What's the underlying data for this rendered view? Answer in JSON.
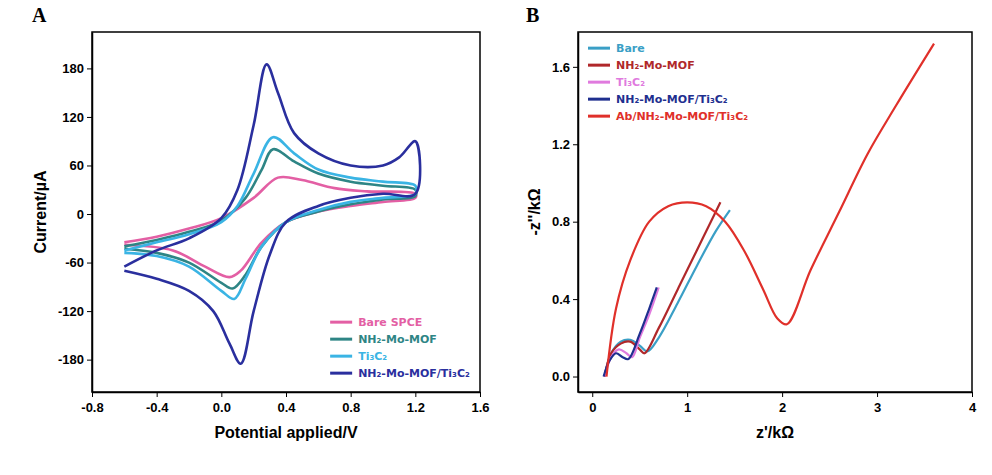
{
  "chart_data": [
    {
      "type": "line",
      "panel": "A",
      "x_label": "Potential applied/V",
      "y_label": "Current/µA",
      "xlim": [
        -0.8,
        1.6
      ],
      "xticks": [
        -0.8,
        -0.4,
        {
          "value": 0,
          "label": "0.0"
        },
        0.4,
        0.8,
        1.2,
        1.6
      ],
      "ylim": [
        -220,
        225
      ],
      "yticks": [
        -180,
        -120,
        -60,
        0,
        60,
        120,
        180
      ],
      "legend": "bottom-right",
      "series": [
        {
          "name": "Bare SPCE",
          "color": "#e35fa4",
          "x": [
            -0.6,
            -0.4,
            -0.2,
            0,
            0.2,
            0.35,
            0.5,
            0.7,
            0.9,
            1.2,
            1.2,
            1.0,
            0.8,
            0.6,
            0.4,
            0.25,
            0.12,
            0.05,
            -0.1,
            -0.3,
            -0.6
          ],
          "values": [
            -35,
            -28,
            -18,
            -5,
            20,
            45,
            42,
            32,
            28,
            25,
            20,
            15,
            10,
            3,
            -10,
            -35,
            -70,
            -78,
            -65,
            -45,
            -38
          ]
        },
        {
          "name": "NH₂-Mo-MOF",
          "color": "#2e8585",
          "x": [
            -0.6,
            -0.4,
            -0.2,
            0,
            0.15,
            0.25,
            0.32,
            0.45,
            0.6,
            0.8,
            1.0,
            1.2,
            1.2,
            1.0,
            0.8,
            0.6,
            0.4,
            0.25,
            0.15,
            0.07,
            0,
            -0.2,
            -0.4,
            -0.6
          ],
          "values": [
            -40,
            -32,
            -22,
            -8,
            20,
            55,
            80,
            65,
            50,
            40,
            35,
            30,
            22,
            18,
            12,
            3,
            -10,
            -40,
            -75,
            -92,
            -85,
            -60,
            -48,
            -43
          ]
        },
        {
          "name": "Ti₃C₂",
          "color": "#3ab4e4",
          "x": [
            -0.6,
            -0.4,
            -0.2,
            0,
            0.1,
            0.2,
            0.32,
            0.45,
            0.6,
            0.8,
            1.0,
            1.2,
            1.2,
            1.0,
            0.8,
            0.6,
            0.4,
            0.25,
            0.15,
            0.08,
            0,
            -0.2,
            -0.4,
            -0.6
          ],
          "values": [
            -45,
            -35,
            -25,
            -10,
            10,
            50,
            95,
            75,
            55,
            45,
            40,
            35,
            25,
            20,
            15,
            5,
            -10,
            -40,
            -80,
            -105,
            -95,
            -65,
            -52,
            -48
          ]
        },
        {
          "name": "NH₂-Mo-MOF/Ti₃C₂",
          "color": "#2a2f9e",
          "x": [
            -0.6,
            -0.4,
            -0.2,
            0,
            0.1,
            0.2,
            0.28,
            0.35,
            0.45,
            0.6,
            0.8,
            1.0,
            1.1,
            1.2,
            1.2,
            1.0,
            0.8,
            0.6,
            0.4,
            0.3,
            0.2,
            0.12,
            0.05,
            -0.05,
            -0.2,
            -0.4,
            -0.6
          ],
          "values": [
            -65,
            -45,
            -30,
            -5,
            30,
            110,
            185,
            150,
            100,
            75,
            60,
            60,
            70,
            90,
            25,
            25,
            20,
            10,
            -10,
            -50,
            -120,
            -185,
            -160,
            -120,
            -95,
            -80,
            -70
          ]
        }
      ]
    },
    {
      "type": "line",
      "panel": "B",
      "x_label": "z'/kΩ",
      "y_label": "-z''/kΩ",
      "xlim": [
        -0.15,
        4
      ],
      "xticks": [
        0,
        1,
        2,
        3,
        4
      ],
      "ylim": [
        -0.08,
        1.78
      ],
      "yticks": [
        {
          "value": 0,
          "label": "0.0"
        },
        0.4,
        0.8,
        1.2,
        1.6
      ],
      "legend": "top-left",
      "series": [
        {
          "name": "Bare",
          "color": "#3a9fc6",
          "x": [
            0.13,
            0.2,
            0.3,
            0.4,
            0.5,
            0.58,
            0.7,
            0.9,
            1.1,
            1.3,
            1.45
          ],
          "values": [
            0,
            0.12,
            0.18,
            0.19,
            0.16,
            0.13,
            0.2,
            0.38,
            0.57,
            0.75,
            0.86
          ]
        },
        {
          "name": "NH₂-Mo-MOF",
          "color": "#b0282a",
          "x": [
            0.13,
            0.2,
            0.3,
            0.4,
            0.5,
            0.55,
            0.7,
            0.9,
            1.1,
            1.3,
            1.35
          ],
          "values": [
            0,
            0.12,
            0.17,
            0.18,
            0.14,
            0.12,
            0.25,
            0.45,
            0.65,
            0.85,
            0.9
          ]
        },
        {
          "name": "Ti₃C₂",
          "color": "#e07ade",
          "x": [
            0.13,
            0.2,
            0.28,
            0.36,
            0.42,
            0.5,
            0.6,
            0.7
          ],
          "values": [
            0,
            0.1,
            0.14,
            0.12,
            0.1,
            0.2,
            0.32,
            0.46
          ]
        },
        {
          "name": "NH₂-Mo-MOF/Ti₃C₂",
          "color": "#1f2f8f",
          "x": [
            0.12,
            0.18,
            0.25,
            0.32,
            0.38,
            0.5,
            0.6,
            0.68
          ],
          "values": [
            0,
            0.08,
            0.12,
            0.1,
            0.09,
            0.22,
            0.35,
            0.46
          ]
        },
        {
          "name": "Ab/NH₂-Mo-MOF/Ti₃C₂",
          "color": "#e0302a",
          "x": [
            0.15,
            0.25,
            0.4,
            0.6,
            0.8,
            1.0,
            1.2,
            1.4,
            1.6,
            1.8,
            1.95,
            2.05,
            2.3,
            2.6,
            2.9,
            3.2,
            3.6
          ],
          "values": [
            0,
            0.35,
            0.6,
            0.8,
            0.88,
            0.9,
            0.88,
            0.8,
            0.65,
            0.45,
            0.3,
            0.27,
            0.55,
            0.85,
            1.15,
            1.4,
            1.72
          ]
        }
      ]
    }
  ]
}
